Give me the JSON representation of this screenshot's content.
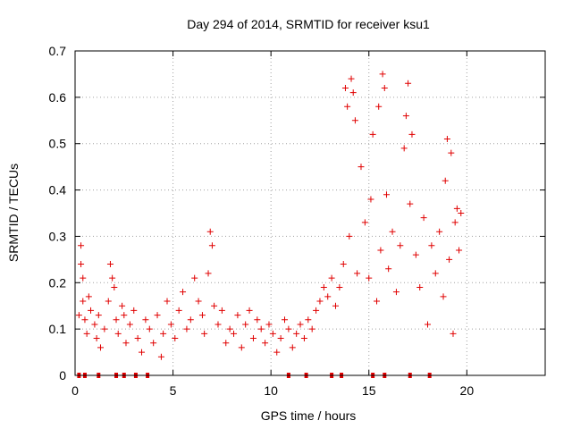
{
  "chart_data": {
    "type": "scatter",
    "title": "Day 294 of 2014, SRMTID for receiver ksu1",
    "xlabel": "GPS time / hours",
    "ylabel": "SRMTID / TECUs",
    "xlim": [
      0,
      24
    ],
    "ylim": [
      0,
      0.7
    ],
    "xticks": [
      0,
      5,
      10,
      15,
      20
    ],
    "xtick_labels": [
      "0",
      "5",
      "10",
      "15",
      "20"
    ],
    "yticks": [
      0,
      0.1,
      0.2,
      0.3,
      0.4,
      0.5,
      0.6,
      0.7
    ],
    "ytick_labels": [
      "0",
      "0.1",
      "0.2",
      "0.3",
      "0.4",
      "0.5",
      "0.6",
      "0.7"
    ],
    "grid": true,
    "marker": "+",
    "series_color": "#e00000",
    "series": [
      {
        "name": "SRMTID",
        "points": [
          [
            0.2,
            0.13
          ],
          [
            0.3,
            0.28
          ],
          [
            0.3,
            0.24
          ],
          [
            0.4,
            0.21
          ],
          [
            0.4,
            0.16
          ],
          [
            0.5,
            0.12
          ],
          [
            0.6,
            0.09
          ],
          [
            0.7,
            0.17
          ],
          [
            0.8,
            0.14
          ],
          [
            1.0,
            0.11
          ],
          [
            1.1,
            0.08
          ],
          [
            1.2,
            0.13
          ],
          [
            1.3,
            0.06
          ],
          [
            1.5,
            0.1
          ],
          [
            1.7,
            0.16
          ],
          [
            1.8,
            0.24
          ],
          [
            1.9,
            0.21
          ],
          [
            2.0,
            0.19
          ],
          [
            2.1,
            0.12
          ],
          [
            2.2,
            0.09
          ],
          [
            2.4,
            0.15
          ],
          [
            2.5,
            0.13
          ],
          [
            2.6,
            0.07
          ],
          [
            2.8,
            0.11
          ],
          [
            3.0,
            0.14
          ],
          [
            3.2,
            0.08
          ],
          [
            3.4,
            0.05
          ],
          [
            3.6,
            0.12
          ],
          [
            3.8,
            0.1
          ],
          [
            4.0,
            0.07
          ],
          [
            4.2,
            0.13
          ],
          [
            4.4,
            0.04
          ],
          [
            4.5,
            0.09
          ],
          [
            4.7,
            0.16
          ],
          [
            4.9,
            0.11
          ],
          [
            5.1,
            0.08
          ],
          [
            5.3,
            0.14
          ],
          [
            5.5,
            0.18
          ],
          [
            5.7,
            0.1
          ],
          [
            5.9,
            0.12
          ],
          [
            6.1,
            0.21
          ],
          [
            6.3,
            0.16
          ],
          [
            6.5,
            0.13
          ],
          [
            6.6,
            0.09
          ],
          [
            6.8,
            0.22
          ],
          [
            6.9,
            0.31
          ],
          [
            7.0,
            0.28
          ],
          [
            7.1,
            0.15
          ],
          [
            7.3,
            0.11
          ],
          [
            7.5,
            0.14
          ],
          [
            7.7,
            0.07
          ],
          [
            7.9,
            0.1
          ],
          [
            8.1,
            0.09
          ],
          [
            8.3,
            0.13
          ],
          [
            8.5,
            0.06
          ],
          [
            8.7,
            0.11
          ],
          [
            8.9,
            0.14
          ],
          [
            9.1,
            0.08
          ],
          [
            9.3,
            0.12
          ],
          [
            9.5,
            0.1
          ],
          [
            9.7,
            0.07
          ],
          [
            9.9,
            0.11
          ],
          [
            10.1,
            0.09
          ],
          [
            10.3,
            0.05
          ],
          [
            10.5,
            0.08
          ],
          [
            10.7,
            0.12
          ],
          [
            10.9,
            0.1
          ],
          [
            11.1,
            0.06
          ],
          [
            11.3,
            0.09
          ],
          [
            11.5,
            0.11
          ],
          [
            11.7,
            0.08
          ],
          [
            11.9,
            0.12
          ],
          [
            12.1,
            0.1
          ],
          [
            12.3,
            0.14
          ],
          [
            12.5,
            0.16
          ],
          [
            12.7,
            0.19
          ],
          [
            12.9,
            0.17
          ],
          [
            13.1,
            0.21
          ],
          [
            13.3,
            0.15
          ],
          [
            13.5,
            0.19
          ],
          [
            13.7,
            0.24
          ],
          [
            13.8,
            0.62
          ],
          [
            13.9,
            0.58
          ],
          [
            14.0,
            0.3
          ],
          [
            14.1,
            0.64
          ],
          [
            14.2,
            0.61
          ],
          [
            14.3,
            0.55
          ],
          [
            14.4,
            0.22
          ],
          [
            14.6,
            0.45
          ],
          [
            14.8,
            0.33
          ],
          [
            15.0,
            0.21
          ],
          [
            15.1,
            0.38
          ],
          [
            15.2,
            0.52
          ],
          [
            15.4,
            0.16
          ],
          [
            15.5,
            0.58
          ],
          [
            15.6,
            0.27
          ],
          [
            15.7,
            0.65
          ],
          [
            15.8,
            0.62
          ],
          [
            15.9,
            0.39
          ],
          [
            16.0,
            0.23
          ],
          [
            16.2,
            0.31
          ],
          [
            16.4,
            0.18
          ],
          [
            16.6,
            0.28
          ],
          [
            16.8,
            0.49
          ],
          [
            16.9,
            0.56
          ],
          [
            17.0,
            0.63
          ],
          [
            17.1,
            0.37
          ],
          [
            17.2,
            0.52
          ],
          [
            17.4,
            0.26
          ],
          [
            17.6,
            0.19
          ],
          [
            17.8,
            0.34
          ],
          [
            18.0,
            0.11
          ],
          [
            18.2,
            0.28
          ],
          [
            18.4,
            0.22
          ],
          [
            18.6,
            0.31
          ],
          [
            18.8,
            0.17
          ],
          [
            18.9,
            0.42
          ],
          [
            19.0,
            0.51
          ],
          [
            19.1,
            0.25
          ],
          [
            19.2,
            0.48
          ],
          [
            19.3,
            0.09
          ],
          [
            19.4,
            0.33
          ],
          [
            19.5,
            0.36
          ],
          [
            19.6,
            0.27
          ],
          [
            19.7,
            0.35
          ]
        ]
      }
    ],
    "baseline_marks_x": [
      0.2,
      0.5,
      1.2,
      2.1,
      2.5,
      3.1,
      3.7,
      10.9,
      11.8,
      13.1,
      13.6,
      15.2,
      15.8,
      17.1,
      18.1
    ]
  }
}
